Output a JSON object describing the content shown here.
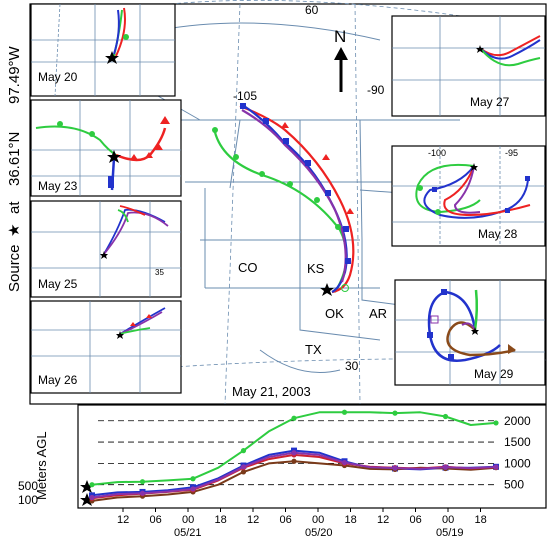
{
  "side_label": {
    "source": "Source",
    "star": "★",
    "at": "at",
    "lat": "36.61°N",
    "lon": "97.49°W"
  },
  "main_map": {
    "date_label": "May 21, 2003",
    "north": "N",
    "lat_labels": [
      "60",
      "30"
    ],
    "lon_labels": [
      "-105",
      "-90"
    ],
    "state_labels": [
      "CO",
      "KS",
      "OK",
      "AR",
      "TX"
    ]
  },
  "insets": [
    {
      "label": "May 20"
    },
    {
      "label": "May 23"
    },
    {
      "label": "May 25",
      "ticks": [
        "35"
      ]
    },
    {
      "label": "May 26"
    },
    {
      "label": "May 27"
    },
    {
      "label": "May 28",
      "ticks": [
        "-100",
        "-95"
      ]
    },
    {
      "label": "May 29"
    }
  ],
  "chart_data": {
    "type": "line",
    "ylabel": "Meters AGL",
    "y_ticks_right": [
      "2000",
      "1500",
      "1000",
      "500"
    ],
    "y_ticks_left": [
      "500",
      "100"
    ],
    "x_tick_labels": [
      "12",
      "06",
      "00",
      "18",
      "12",
      "06",
      "00",
      "18",
      "12",
      "06",
      "00",
      "18"
    ],
    "date_labels": [
      "05/21",
      "05/20",
      "05/19"
    ],
    "ylim": [
      0,
      2300
    ],
    "series": [
      {
        "color": "#2ecc40",
        "values": [
          500,
          560,
          570,
          600,
          640,
          900,
          1300,
          1750,
          2060,
          2200,
          2200,
          2200,
          2180,
          2200,
          2100,
          1900,
          1950
        ]
      },
      {
        "color": "#2233cc",
        "values": [
          250,
          320,
          330,
          370,
          440,
          650,
          950,
          1200,
          1300,
          1250,
          1050,
          900,
          880,
          860,
          900,
          900,
          920
        ]
      },
      {
        "color": "#7a3a1a",
        "values": [
          120,
          200,
          230,
          270,
          330,
          500,
          800,
          1000,
          1050,
          1000,
          950,
          870,
          860,
          900,
          880,
          850,
          900
        ]
      },
      {
        "color": "#cc2233",
        "values": [
          180,
          250,
          290,
          330,
          380,
          600,
          900,
          1100,
          1200,
          1150,
          1000,
          920,
          900,
          880,
          920,
          880,
          910
        ]
      },
      {
        "color": "#8833aa",
        "values": [
          200,
          280,
          300,
          340,
          400,
          620,
          920,
          1150,
          1250,
          1200,
          1020,
          910,
          890,
          870,
          910,
          890,
          915
        ]
      }
    ]
  },
  "colors": {
    "state_line": "#6a8caf",
    "green": "#2ecc40",
    "red": "#ee2222",
    "blue": "#2233cc",
    "purple": "#8833aa",
    "brown": "#8a4a1a",
    "frame": "#000000"
  }
}
